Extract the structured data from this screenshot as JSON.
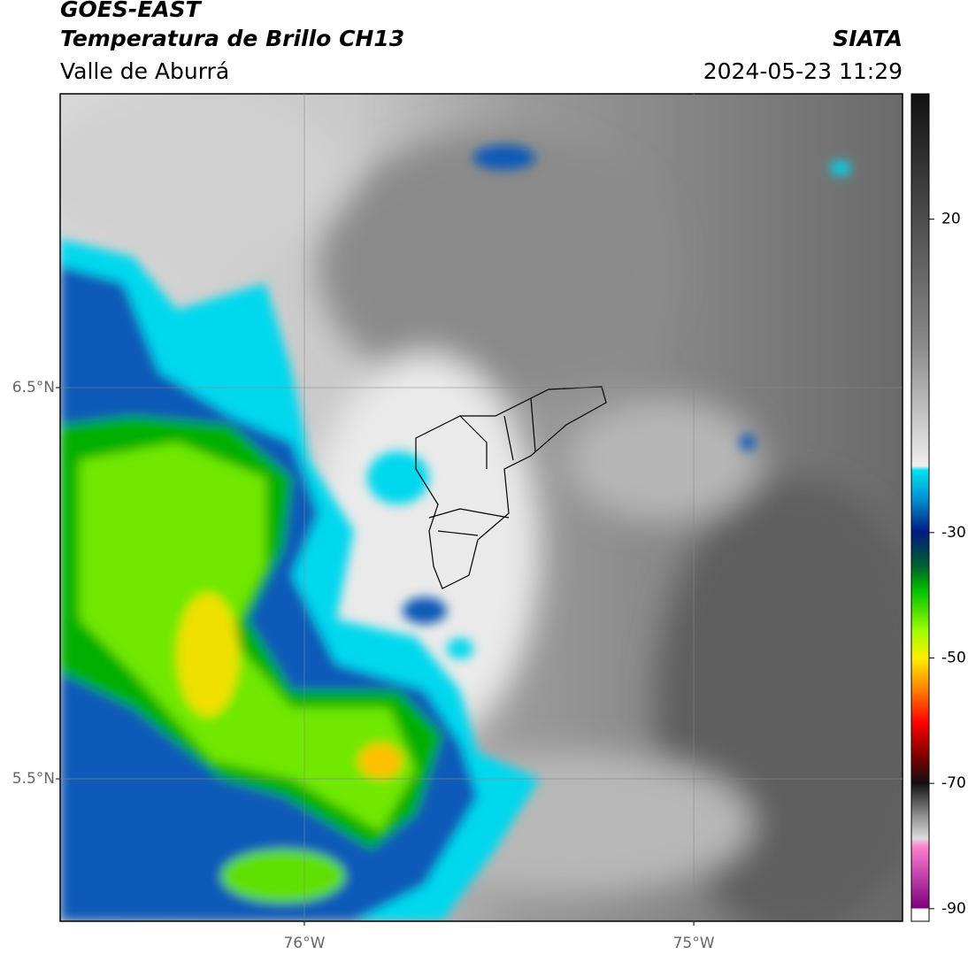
{
  "header": {
    "title": "GOES-EAST",
    "subtitle": "Temperatura de Brillo CH13",
    "region": "Valle de Aburrá",
    "source": "SIATA",
    "datetime": "2024-05-23 11:29"
  },
  "map": {
    "xlim": [
      -76.627,
      -74.464
    ],
    "ylim": [
      5.136,
      7.251
    ],
    "xticks": [
      {
        "value": -76,
        "label": "76°W"
      },
      {
        "value": -75,
        "label": "75°W"
      }
    ],
    "yticks": [
      {
        "value": 6.5,
        "label": "6.5°N"
      },
      {
        "value": 5.5,
        "label": "5.5°N"
      }
    ],
    "grid": true
  },
  "colorbar": {
    "lim": [
      -92,
      40
    ],
    "ticks": [
      20,
      -30,
      -50,
      -70,
      -90
    ]
  }
}
